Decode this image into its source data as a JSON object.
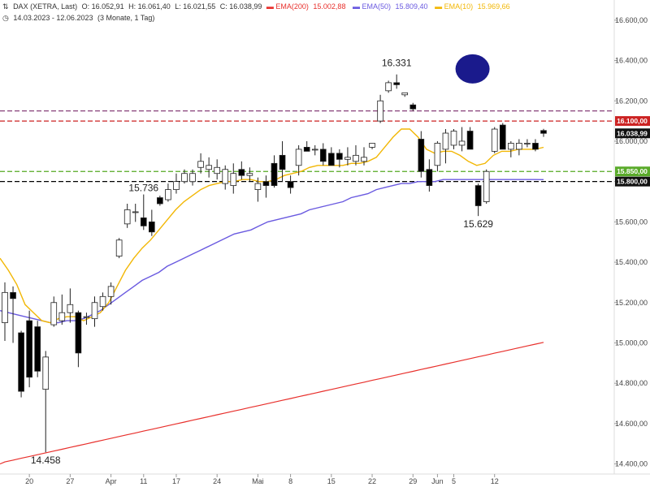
{
  "header": {
    "line1": {
      "icon": "chart-icon",
      "symbol": "DAX (XETRA, Last)",
      "open": "O: 16.052,91",
      "high": "H: 16.061,40",
      "low": "L: 16.021,55",
      "close": "C: 16.038,99",
      "ema200": {
        "label": "EMA(200)",
        "value": "15.002,88",
        "color": "#e8302c"
      },
      "ema50": {
        "label": "EMA(50)",
        "value": "15.809,40",
        "color": "#6a5ae0"
      },
      "ema10": {
        "label": "EMA(10)",
        "value": "15.969,66",
        "color": "#f2b705"
      }
    },
    "line2": {
      "icon": "clock-icon",
      "range": "14.03.2023 - 12.06.2023",
      "period": "(3 Monate, 1 Tag)"
    }
  },
  "chart_data": {
    "type": "candlestick",
    "y_axis": {
      "min": 14350,
      "max": 16700,
      "ticks": [
        "14.400,00",
        "14.600,00",
        "14.800,00",
        "15.000,00",
        "15.200,00",
        "15.400,00",
        "15.600,00",
        "15.800,00",
        "16.000,00",
        "16.200,00",
        "16.400,00",
        "16.600,00"
      ],
      "tick_values": [
        14400,
        14600,
        14800,
        15000,
        15200,
        15400,
        15600,
        15800,
        16000,
        16200,
        16400,
        16600
      ]
    },
    "x_axis": {
      "labels": [
        {
          "text": "20",
          "index": 3
        },
        {
          "text": "27",
          "index": 8
        },
        {
          "text": "Apr",
          "index": 13
        },
        {
          "text": "11",
          "index": 17
        },
        {
          "text": "17",
          "index": 21
        },
        {
          "text": "24",
          "index": 26
        },
        {
          "text": "Mai",
          "index": 31
        },
        {
          "text": "8",
          "index": 35
        },
        {
          "text": "15",
          "index": 40
        },
        {
          "text": "22",
          "index": 45
        },
        {
          "text": "29",
          "index": 50
        },
        {
          "text": "Jun",
          "index": 53
        },
        {
          "text": "5",
          "index": 55
        },
        {
          "text": "12",
          "index": 60
        }
      ]
    },
    "candles": [
      {
        "o": 15100,
        "h": 15300,
        "l": 15010,
        "c": 15250
      },
      {
        "o": 15250,
        "h": 15280,
        "l": 15000,
        "c": 15220
      },
      {
        "o": 15050,
        "h": 15060,
        "l": 14730,
        "c": 14760
      },
      {
        "o": 15110,
        "h": 15160,
        "l": 14780,
        "c": 14830
      },
      {
        "o": 15080,
        "h": 15110,
        "l": 14830,
        "c": 14860
      },
      {
        "o": 14770,
        "h": 14960,
        "l": 14458,
        "c": 14930
      },
      {
        "o": 15090,
        "h": 15230,
        "l": 15080,
        "c": 15200
      },
      {
        "o": 15110,
        "h": 15240,
        "l": 15090,
        "c": 15150
      },
      {
        "o": 15150,
        "h": 15270,
        "l": 15100,
        "c": 15190
      },
      {
        "o": 15150,
        "h": 15160,
        "l": 14880,
        "c": 14950
      },
      {
        "o": 15130,
        "h": 15150,
        "l": 15090,
        "c": 15130
      },
      {
        "o": 15120,
        "h": 15230,
        "l": 15080,
        "c": 15200
      },
      {
        "o": 15180,
        "h": 15250,
        "l": 15160,
        "c": 15230
      },
      {
        "o": 15230,
        "h": 15300,
        "l": 15190,
        "c": 15280
      },
      {
        "o": 15430,
        "h": 15520,
        "l": 15420,
        "c": 15510
      },
      {
        "o": 15590,
        "h": 15690,
        "l": 15570,
        "c": 15660
      },
      {
        "o": 15650,
        "h": 15690,
        "l": 15600,
        "c": 15650
      },
      {
        "o": 15620,
        "h": 15736,
        "l": 15560,
        "c": 15580
      },
      {
        "o": 15600,
        "h": 15660,
        "l": 15530,
        "c": 15550
      },
      {
        "o": 15720,
        "h": 15730,
        "l": 15680,
        "c": 15690
      },
      {
        "o": 15710,
        "h": 15790,
        "l": 15700,
        "c": 15760
      },
      {
        "o": 15760,
        "h": 15840,
        "l": 15740,
        "c": 15800
      },
      {
        "o": 15800,
        "h": 15860,
        "l": 15790,
        "c": 15840
      },
      {
        "o": 15800,
        "h": 15860,
        "l": 15780,
        "c": 15840
      },
      {
        "o": 15870,
        "h": 15940,
        "l": 15840,
        "c": 15900
      },
      {
        "o": 15860,
        "h": 15920,
        "l": 15820,
        "c": 15880
      },
      {
        "o": 15840,
        "h": 15910,
        "l": 15810,
        "c": 15870
      },
      {
        "o": 15790,
        "h": 15880,
        "l": 15760,
        "c": 15860
      },
      {
        "o": 15780,
        "h": 15890,
        "l": 15740,
        "c": 15840
      },
      {
        "o": 15860,
        "h": 15900,
        "l": 15810,
        "c": 15830
      },
      {
        "o": 15830,
        "h": 15870,
        "l": 15800,
        "c": 15840
      },
      {
        "o": 15760,
        "h": 15820,
        "l": 15700,
        "c": 15790
      },
      {
        "o": 15800,
        "h": 15830,
        "l": 15720,
        "c": 15780
      },
      {
        "o": 15890,
        "h": 15930,
        "l": 15770,
        "c": 15780
      },
      {
        "o": 15930,
        "h": 16000,
        "l": 15800,
        "c": 15860
      },
      {
        "o": 15800,
        "h": 15830,
        "l": 15740,
        "c": 15770
      },
      {
        "o": 15880,
        "h": 15980,
        "l": 15830,
        "c": 15960
      },
      {
        "o": 15970,
        "h": 16000,
        "l": 15950,
        "c": 15950
      },
      {
        "o": 15960,
        "h": 15980,
        "l": 15930,
        "c": 15960
      },
      {
        "o": 15960,
        "h": 15990,
        "l": 15880,
        "c": 15900
      },
      {
        "o": 15940,
        "h": 15970,
        "l": 15880,
        "c": 15880
      },
      {
        "o": 15940,
        "h": 15960,
        "l": 15870,
        "c": 15910
      },
      {
        "o": 15910,
        "h": 15970,
        "l": 15880,
        "c": 15920
      },
      {
        "o": 15900,
        "h": 15980,
        "l": 15880,
        "c": 15930
      },
      {
        "o": 15900,
        "h": 15970,
        "l": 15880,
        "c": 15920
      },
      {
        "o": 15970,
        "h": 15990,
        "l": 15960,
        "c": 15990
      },
      {
        "o": 16100,
        "h": 16230,
        "l": 16090,
        "c": 16200
      },
      {
        "o": 16250,
        "h": 16300,
        "l": 16240,
        "c": 16290
      },
      {
        "o": 16290,
        "h": 16331,
        "l": 16260,
        "c": 16280
      },
      {
        "o": 16230,
        "h": 16240,
        "l": 16220,
        "c": 16240
      },
      {
        "o": 16180,
        "h": 16190,
        "l": 16150,
        "c": 16160
      },
      {
        "o": 16010,
        "h": 16050,
        "l": 15820,
        "c": 15850
      },
      {
        "o": 15860,
        "h": 15910,
        "l": 15750,
        "c": 15780
      },
      {
        "o": 15880,
        "h": 16000,
        "l": 15850,
        "c": 15990
      },
      {
        "o": 15960,
        "h": 16060,
        "l": 15890,
        "c": 16040
      },
      {
        "o": 15980,
        "h": 16060,
        "l": 15960,
        "c": 16050
      },
      {
        "o": 15980,
        "h": 16070,
        "l": 15950,
        "c": 16000
      },
      {
        "o": 16050,
        "h": 16070,
        "l": 15960,
        "c": 15960
      },
      {
        "o": 15780,
        "h": 15790,
        "l": 15629,
        "c": 15680
      },
      {
        "o": 15700,
        "h": 15860,
        "l": 15690,
        "c": 15850
      },
      {
        "o": 15950,
        "h": 16070,
        "l": 15940,
        "c": 16060
      },
      {
        "o": 16080,
        "h": 16090,
        "l": 15960,
        "c": 15960
      },
      {
        "o": 15960,
        "h": 16000,
        "l": 15920,
        "c": 15990
      },
      {
        "o": 15960,
        "h": 16010,
        "l": 15930,
        "c": 15990
      },
      {
        "o": 15990,
        "h": 16010,
        "l": 15970,
        "c": 15990
      },
      {
        "o": 15990,
        "h": 16010,
        "l": 15950,
        "c": 15960
      },
      {
        "o": 16052.91,
        "h": 16061.4,
        "l": 16021.55,
        "c": 16038.99
      }
    ],
    "series": [
      {
        "name": "EMA(200)",
        "color": "#e8302c",
        "values_start": 14410,
        "values_end": 15002.88
      },
      {
        "name": "EMA(50)",
        "color": "#6a5ae0",
        "points": [
          15160,
          15150,
          15140,
          15130,
          15120,
          15110,
          15100,
          15100,
          15110,
          15110,
          15120,
          15140,
          15160,
          15190,
          15220,
          15250,
          15280,
          15310,
          15330,
          15350,
          15380,
          15400,
          15420,
          15440,
          15460,
          15480,
          15500,
          15520,
          15540,
          15550,
          15560,
          15580,
          15600,
          15610,
          15620,
          15630,
          15640,
          15660,
          15670,
          15680,
          15690,
          15700,
          15720,
          15730,
          15740,
          15760,
          15770,
          15780,
          15790,
          15790,
          15800,
          15800,
          15800,
          15810,
          15810,
          15810,
          15810,
          15810,
          15810,
          15810,
          15810,
          15810,
          15810,
          15810,
          15810,
          15809.4
        ]
      },
      {
        "name": "EMA(10)",
        "color": "#f2b705",
        "points": [
          15420,
          15360,
          15290,
          15190,
          15150,
          15110,
          15100,
          15120,
          15130,
          15130,
          15110,
          15130,
          15150,
          15200,
          15280,
          15360,
          15420,
          15470,
          15510,
          15560,
          15610,
          15660,
          15700,
          15730,
          15760,
          15780,
          15790,
          15800,
          15800,
          15810,
          15810,
          15800,
          15800,
          15810,
          15830,
          15840,
          15850,
          15870,
          15880,
          15880,
          15880,
          15880,
          15890,
          15890,
          15900,
          15920,
          15970,
          16020,
          16060,
          16060,
          16020,
          15960,
          15940,
          15950,
          15950,
          15930,
          15900,
          15880,
          15890,
          15930,
          15950,
          15950,
          15960,
          15960,
          15960,
          15969.66
        ]
      }
    ],
    "horizontal_lines": [
      {
        "value": 16150,
        "color": "#7a2a6a",
        "style": "dashed"
      },
      {
        "value": 16100,
        "color": "#cc2222",
        "style": "dashed",
        "label": "16.100,00",
        "label_bg": "#cc2222"
      },
      {
        "value": 15850,
        "color": "#55aa22",
        "style": "dashed",
        "label": "15.850,00",
        "label_bg": "#5aab2a"
      },
      {
        "value": 15800,
        "color": "#000000",
        "style": "dashed",
        "label": "15.800,00",
        "label_bg": "#111111"
      }
    ],
    "last_price_label": {
      "text": "16.038,99",
      "value": 16038.99,
      "bg": "#111111"
    },
    "annotations": [
      {
        "text": "16.331",
        "value": 16331,
        "index": 48
      },
      {
        "text": "15.736",
        "value": 15736,
        "index": 17
      },
      {
        "text": "15.629",
        "value": 15629,
        "index": 58
      },
      {
        "text": "14.458",
        "value": 14458,
        "index": 5
      }
    ],
    "marker": {
      "shape": "ellipse",
      "color": "#1a1a8c",
      "index": 57,
      "value": 16310
    }
  }
}
